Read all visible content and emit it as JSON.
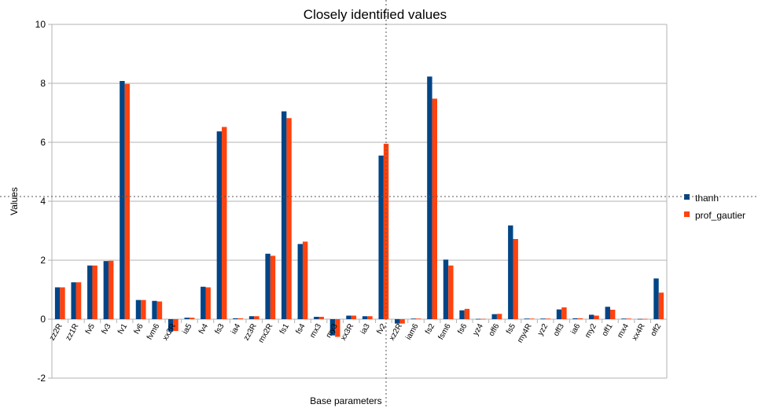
{
  "chart_data": {
    "type": "bar",
    "title": "Closely identified values",
    "xlabel": "Base parameters",
    "ylabel": "Values",
    "ylim": [
      -2,
      10
    ],
    "yticks": [
      -2,
      0,
      2,
      4,
      6,
      8,
      10
    ],
    "grid": true,
    "legend_position": "right",
    "categories": [
      "zz2R",
      "zz1R",
      "fv5",
      "fv3",
      "fv1",
      "fv6",
      "fvm6",
      "xx2R",
      "ia5",
      "fv4",
      "fs3",
      "ia4",
      "zz3R",
      "mx2R",
      "fs1",
      "fs4",
      "mx3",
      "my3",
      "xx3R",
      "ia3",
      "fv2",
      "xz2R",
      "iam6",
      "fs2",
      "fsm6",
      "fs6",
      "yz4",
      "off6",
      "fs5",
      "my4R",
      "yz2",
      "off3",
      "ia6",
      "my2",
      "off1",
      "mx4",
      "xx4R",
      "off2"
    ],
    "series": [
      {
        "name": "thanh",
        "color": "#004586",
        "values": [
          1.08,
          1.25,
          1.82,
          1.97,
          8.08,
          0.65,
          0.62,
          -0.42,
          0.05,
          1.1,
          6.37,
          0.03,
          0.1,
          2.22,
          7.05,
          2.55,
          0.08,
          -0.55,
          0.12,
          0.1,
          5.55,
          -0.15,
          0.02,
          8.23,
          2.02,
          0.3,
          0.01,
          0.17,
          3.18,
          0.02,
          0.02,
          0.33,
          0.03,
          0.15,
          0.42,
          0.02,
          0.01,
          1.38
        ]
      },
      {
        "name": "prof_gautier",
        "color": "#ff420e",
        "values": [
          1.08,
          1.25,
          1.82,
          1.98,
          7.98,
          0.65,
          0.6,
          -0.4,
          0.05,
          1.08,
          6.52,
          0.03,
          0.1,
          2.15,
          6.82,
          2.63,
          0.08,
          -0.6,
          0.12,
          0.1,
          5.95,
          -0.15,
          0.02,
          7.48,
          1.82,
          0.35,
          0.01,
          0.18,
          2.72,
          0.02,
          0.02,
          0.4,
          0.03,
          0.12,
          0.32,
          0.02,
          0.01,
          0.9
        ]
      }
    ]
  }
}
